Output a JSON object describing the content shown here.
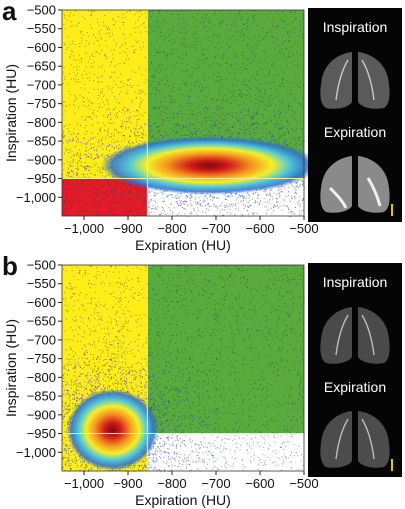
{
  "figure": {
    "panels": [
      {
        "letter": "a",
        "ct_labels": [
          "Inspiration",
          "Expiration"
        ],
        "ct_scale_bar_color": "#e8c000",
        "hotspot": {
          "x": -715,
          "y": -915,
          "spread_x": 95,
          "spread_y": 30
        },
        "emphysema_quadrant_color": "#e21b24"
      },
      {
        "letter": "b",
        "ct_labels": [
          "Inspiration",
          "Expiration"
        ],
        "ct_scale_bar_color": "#e8c000",
        "hotspot": {
          "x": -935,
          "y": -940,
          "spread_x": 40,
          "spread_y": 42
        },
        "emphysema_quadrant_color": "#e21b24"
      }
    ]
  },
  "chart_data": [
    {
      "type": "heatmap",
      "xlabel": "Expiration (HU)",
      "ylabel": "Inspiration (HU)",
      "xlim": [
        -1050,
        -500
      ],
      "ylim": [
        -1050,
        -500
      ],
      "x_ticks": [
        -1000,
        -900,
        -800,
        -700,
        -600,
        -500
      ],
      "x_tick_labels": [
        "−1,000",
        "−900",
        "−800",
        "−700",
        "−600",
        "−500"
      ],
      "y_ticks": [
        -500,
        -550,
        -600,
        -650,
        -700,
        -750,
        -800,
        -850,
        -900,
        -950,
        -1000
      ],
      "y_tick_labels": [
        "−500",
        "−550",
        "−600",
        "−650",
        "−700",
        "−750",
        "−800",
        "−850",
        "−900",
        "−950",
        "−1,000"
      ],
      "thresholds": {
        "expiration": -856,
        "inspiration": -950
      },
      "region_colors": {
        "left": "#ffec18",
        "right": "#5aab3d",
        "bottom_left": "#e21b24",
        "bottom_right": "#ffffff"
      }
    },
    {
      "type": "heatmap",
      "xlabel": "Expiration (HU)",
      "ylabel": "Inspiration (HU)",
      "xlim": [
        -1050,
        -500
      ],
      "ylim": [
        -1050,
        -500
      ],
      "x_ticks": [
        -1000,
        -900,
        -800,
        -700,
        -600,
        -500
      ],
      "x_tick_labels": [
        "−1,000",
        "−900",
        "−800",
        "−700",
        "−600",
        "−500"
      ],
      "y_ticks": [
        -500,
        -550,
        -600,
        -650,
        -700,
        -750,
        -800,
        -850,
        -900,
        -950,
        -1000
      ],
      "y_tick_labels": [
        "−500",
        "−550",
        "−600",
        "−650",
        "−700",
        "−750",
        "−800",
        "−850",
        "−900",
        "−950",
        "−1,000"
      ],
      "thresholds": {
        "expiration": -856,
        "inspiration": -950
      },
      "region_colors": {
        "left": "#ffec18",
        "right": "#5aab3d",
        "bottom_left": "#e21b24",
        "bottom_right": "#ffffff"
      }
    }
  ]
}
